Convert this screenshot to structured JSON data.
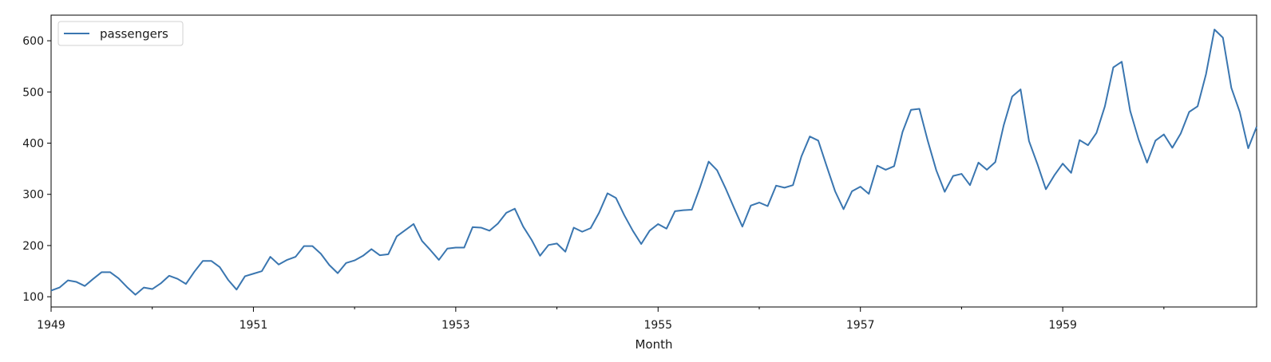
{
  "chart_data": {
    "type": "line",
    "title": "",
    "xlabel": "Month",
    "ylabel": "",
    "x_start": "1949-01",
    "x_end": "1960-12",
    "xlim": [
      "1949-01",
      "1960-12"
    ],
    "ylim": [
      80,
      650
    ],
    "x_major_ticks": [
      {
        "label": "1949",
        "date": "1949-01"
      },
      {
        "label": "1951",
        "date": "1951-01"
      },
      {
        "label": "1953",
        "date": "1953-01"
      },
      {
        "label": "1955",
        "date": "1955-01"
      },
      {
        "label": "1957",
        "date": "1957-01"
      },
      {
        "label": "1959",
        "date": "1959-01"
      }
    ],
    "x_minor_ticks": [
      "1950-01",
      "1952-01",
      "1954-01",
      "1956-01",
      "1958-01",
      "1960-01"
    ],
    "y_ticks": [
      100,
      200,
      300,
      400,
      500,
      600
    ],
    "grid": false,
    "legend": {
      "placement": "top-left"
    },
    "series": [
      {
        "name": "passengers",
        "color": "#3a76b0",
        "values": [
          112,
          118,
          132,
          129,
          121,
          135,
          148,
          148,
          136,
          119,
          104,
          118,
          115,
          126,
          141,
          135,
          125,
          149,
          170,
          170,
          158,
          133,
          114,
          140,
          145,
          150,
          178,
          163,
          172,
          178,
          199,
          199,
          184,
          162,
          146,
          166,
          171,
          180,
          193,
          181,
          183,
          218,
          230,
          242,
          209,
          191,
          172,
          194,
          196,
          196,
          236,
          235,
          229,
          243,
          264,
          272,
          237,
          211,
          180,
          201,
          204,
          188,
          235,
          227,
          234,
          264,
          302,
          293,
          259,
          229,
          203,
          229,
          242,
          233,
          267,
          269,
          270,
          315,
          364,
          347,
          312,
          274,
          237,
          278,
          284,
          277,
          317,
          313,
          318,
          374,
          413,
          405,
          355,
          306,
          271,
          306,
          315,
          301,
          356,
          348,
          355,
          422,
          465,
          467,
          404,
          347,
          305,
          336,
          340,
          318,
          362,
          348,
          363,
          435,
          491,
          505,
          404,
          359,
          310,
          337,
          360,
          342,
          406,
          396,
          420,
          472,
          548,
          559,
          463,
          407,
          362,
          405,
          417,
          391,
          419,
          461,
          472,
          535,
          622,
          606,
          508,
          461,
          390,
          432
        ]
      }
    ]
  }
}
